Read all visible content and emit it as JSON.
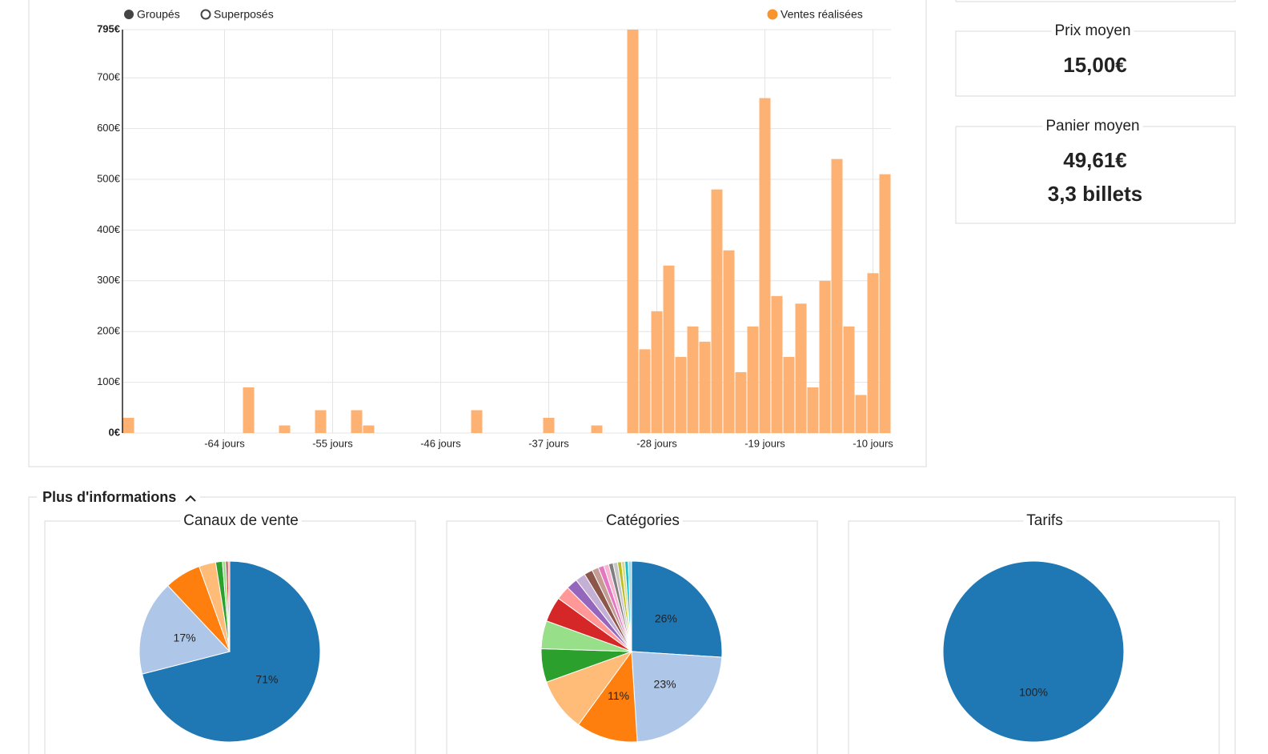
{
  "toggles": [
    "Groupés",
    "Superposés"
  ],
  "stats": [
    {
      "title": "Prix moyen",
      "values": [
        "15,00€"
      ]
    },
    {
      "title": "Panier moyen",
      "values": [
        "49,61€",
        "3,3 billets"
      ]
    }
  ],
  "section_title": "Plus d'informations",
  "chart_data": [
    {
      "type": "bar",
      "categories": [
        null,
        null,
        null,
        null,
        null,
        null,
        null,
        null,
        "-64 jours",
        null,
        null,
        null,
        null,
        null,
        null,
        null,
        null,
        "-55 jours",
        null,
        null,
        null,
        null,
        null,
        null,
        null,
        null,
        "-46 jours",
        null,
        null,
        null,
        null,
        null,
        null,
        null,
        null,
        "-37 jours",
        null,
        null,
        null,
        null,
        null,
        null,
        null,
        null,
        "-28 jours",
        null,
        null,
        null,
        null,
        null,
        null,
        null,
        null,
        "-19 jours",
        null,
        null,
        null,
        null,
        null,
        null,
        null,
        null,
        "-10 jours",
        null
      ],
      "series": [
        {
          "name": "Ventes réalisées",
          "color": "#fdae6b",
          "values": [
            30,
            0,
            0,
            0,
            0,
            0,
            0,
            0,
            0,
            0,
            90,
            0,
            0,
            15,
            0,
            0,
            45,
            0,
            0,
            45,
            15,
            0,
            0,
            0,
            0,
            0,
            0,
            0,
            0,
            45,
            0,
            0,
            0,
            0,
            0,
            30,
            0,
            0,
            0,
            15,
            0,
            0,
            795,
            165,
            240,
            330,
            150,
            210,
            180,
            480,
            360,
            120,
            210,
            660,
            270,
            150,
            255,
            90,
            300,
            540,
            210,
            75,
            315,
            510
          ]
        }
      ],
      "legend_color": "#f7952c",
      "ylim": [
        0,
        795
      ],
      "yticks": [
        {
          "value": 0,
          "label": "0€"
        },
        {
          "value": 100,
          "label": "100€"
        },
        {
          "value": 200,
          "label": "200€"
        },
        {
          "value": 300,
          "label": "300€"
        },
        {
          "value": 400,
          "label": "400€"
        },
        {
          "value": 500,
          "label": "500€"
        },
        {
          "value": 600,
          "label": "600€"
        },
        {
          "value": 700,
          "label": "700€"
        },
        {
          "value": 795,
          "label": "795€"
        }
      ],
      "grid": true
    },
    {
      "type": "pie",
      "title": "Canaux de vente",
      "values": [
        71,
        17,
        6.5,
        3,
        1.2,
        0.6,
        0.4,
        0.3
      ],
      "value_labels": [
        "71%",
        "17%",
        null,
        null,
        null,
        null,
        null,
        null
      ],
      "colors": [
        "#1f77b4",
        "#aec7e8",
        "#ff7f0e",
        "#ffbb78",
        "#2ca02c",
        "#98df8a",
        "#d62728",
        "#ff9896"
      ]
    },
    {
      "type": "pie",
      "title": "Catégories",
      "values": [
        26,
        23,
        11,
        9.5,
        6,
        5,
        4.5,
        2.5,
        2,
        1.8,
        1.5,
        1.2,
        1,
        0.9,
        0.8,
        0.8,
        0.7,
        0.6,
        0.6,
        0.6
      ],
      "value_labels": [
        "26%",
        "23%",
        "11%",
        null,
        null,
        null,
        null,
        null,
        null,
        null,
        null,
        null,
        null,
        null,
        null,
        null,
        null,
        null,
        null,
        null
      ],
      "colors": [
        "#1f77b4",
        "#aec7e8",
        "#ff7f0e",
        "#ffbb78",
        "#2ca02c",
        "#98df8a",
        "#d62728",
        "#ff9896",
        "#9467bd",
        "#c5b0d5",
        "#8c564b",
        "#c49c94",
        "#e377c2",
        "#f7b6d2",
        "#7f7f7f",
        "#c7c7c7",
        "#bcbd22",
        "#dbdb8d",
        "#17becf",
        "#9edae5"
      ]
    },
    {
      "type": "pie",
      "title": "Tarifs",
      "values": [
        100
      ],
      "value_labels": [
        "100%"
      ],
      "colors": [
        "#1f77b4"
      ]
    }
  ]
}
